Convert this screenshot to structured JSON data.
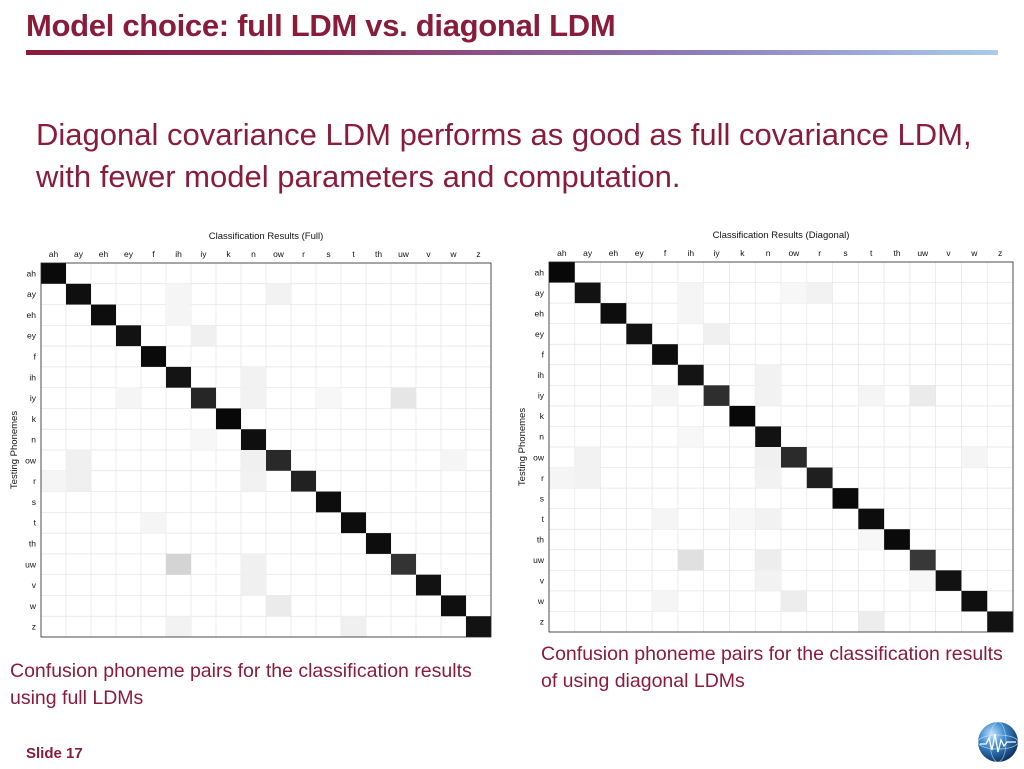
{
  "slide": {
    "title": "Model choice: full LDM vs. diagonal LDM",
    "subtitle": "Diagonal covariance LDM performs as good as full covariance LDM, with fewer model parameters and computation.",
    "slide_number": "Slide 17",
    "logo_icon": "globe-logo-icon",
    "accent_color": "#8a1c3b"
  },
  "captions": {
    "full": "Confusion phoneme pairs for the classification results using full LDMs",
    "diagonal": "Confusion phoneme pairs for the classification results of using diagonal LDMs"
  },
  "chart_data": [
    {
      "type": "heatmap",
      "title": "Classification Results (Full)",
      "xlabel": "",
      "ylabel": "Testing Phonemes",
      "x": [
        "ah",
        "ay",
        "eh",
        "ey",
        "f",
        "ih",
        "iy",
        "k",
        "n",
        "ow",
        "r",
        "s",
        "t",
        "th",
        "uw",
        "v",
        "w",
        "z"
      ],
      "y": [
        "ah",
        "ay",
        "eh",
        "ey",
        "f",
        "ih",
        "iy",
        "k",
        "n",
        "ow",
        "r",
        "s",
        "t",
        "th",
        "uw",
        "v",
        "w",
        "z"
      ],
      "grid": true,
      "diagonal": [
        0.96,
        0.94,
        0.95,
        0.93,
        0.96,
        0.92,
        0.85,
        0.97,
        0.94,
        0.84,
        0.87,
        0.95,
        0.95,
        0.95,
        0.8,
        0.93,
        0.94,
        0.93
      ],
      "off_diagonal": [
        {
          "row": "ay",
          "col": "ih",
          "value": 0.04
        },
        {
          "row": "ay",
          "col": "ow",
          "value": 0.05
        },
        {
          "row": "eh",
          "col": "ih",
          "value": 0.04
        },
        {
          "row": "ey",
          "col": "iy",
          "value": 0.06
        },
        {
          "row": "ih",
          "col": "n",
          "value": 0.05
        },
        {
          "row": "iy",
          "col": "ey",
          "value": 0.04
        },
        {
          "row": "iy",
          "col": "n",
          "value": 0.05
        },
        {
          "row": "iy",
          "col": "s",
          "value": 0.03
        },
        {
          "row": "iy",
          "col": "uw",
          "value": 0.1
        },
        {
          "row": "n",
          "col": "iy",
          "value": 0.03
        },
        {
          "row": "ow",
          "col": "ay",
          "value": 0.06
        },
        {
          "row": "ow",
          "col": "n",
          "value": 0.06
        },
        {
          "row": "ow",
          "col": "w",
          "value": 0.04
        },
        {
          "row": "r",
          "col": "ah",
          "value": 0.04
        },
        {
          "row": "r",
          "col": "ay",
          "value": 0.06
        },
        {
          "row": "r",
          "col": "n",
          "value": 0.05
        },
        {
          "row": "t",
          "col": "f",
          "value": 0.04
        },
        {
          "row": "uw",
          "col": "ih",
          "value": 0.17
        },
        {
          "row": "uw",
          "col": "n",
          "value": 0.06
        },
        {
          "row": "v",
          "col": "n",
          "value": 0.06
        },
        {
          "row": "w",
          "col": "ow",
          "value": 0.08
        },
        {
          "row": "z",
          "col": "ih",
          "value": 0.05
        },
        {
          "row": "z",
          "col": "t",
          "value": 0.06
        }
      ]
    },
    {
      "type": "heatmap",
      "title": "Classification Results (Diagonal)",
      "xlabel": "",
      "ylabel": "Testing Phonemes",
      "x": [
        "ah",
        "ay",
        "eh",
        "ey",
        "f",
        "ih",
        "iy",
        "k",
        "n",
        "ow",
        "r",
        "s",
        "t",
        "th",
        "uw",
        "v",
        "w",
        "z"
      ],
      "y": [
        "ah",
        "ay",
        "eh",
        "ey",
        "f",
        "ih",
        "iy",
        "k",
        "n",
        "ow",
        "r",
        "s",
        "t",
        "th",
        "uw",
        "v",
        "w",
        "z"
      ],
      "grid": true,
      "diagonal": [
        0.97,
        0.93,
        0.95,
        0.93,
        0.95,
        0.92,
        0.82,
        0.97,
        0.93,
        0.83,
        0.88,
        0.96,
        0.95,
        0.96,
        0.78,
        0.93,
        0.94,
        0.93
      ],
      "off_diagonal": [
        {
          "row": "ay",
          "col": "ih",
          "value": 0.04
        },
        {
          "row": "ay",
          "col": "ow",
          "value": 0.03
        },
        {
          "row": "ay",
          "col": "r",
          "value": 0.05
        },
        {
          "row": "eh",
          "col": "ih",
          "value": 0.04
        },
        {
          "row": "ey",
          "col": "iy",
          "value": 0.06
        },
        {
          "row": "ih",
          "col": "n",
          "value": 0.05
        },
        {
          "row": "iy",
          "col": "f",
          "value": 0.04
        },
        {
          "row": "iy",
          "col": "n",
          "value": 0.05
        },
        {
          "row": "iy",
          "col": "t",
          "value": 0.04
        },
        {
          "row": "iy",
          "col": "uw",
          "value": 0.08
        },
        {
          "row": "n",
          "col": "ih",
          "value": 0.03
        },
        {
          "row": "ow",
          "col": "ay",
          "value": 0.05
        },
        {
          "row": "ow",
          "col": "n",
          "value": 0.06
        },
        {
          "row": "ow",
          "col": "w",
          "value": 0.04
        },
        {
          "row": "r",
          "col": "ah",
          "value": 0.04
        },
        {
          "row": "r",
          "col": "ay",
          "value": 0.05
        },
        {
          "row": "r",
          "col": "n",
          "value": 0.05
        },
        {
          "row": "t",
          "col": "f",
          "value": 0.04
        },
        {
          "row": "t",
          "col": "k",
          "value": 0.03
        },
        {
          "row": "t",
          "col": "n",
          "value": 0.05
        },
        {
          "row": "th",
          "col": "t",
          "value": 0.03
        },
        {
          "row": "uw",
          "col": "ih",
          "value": 0.12
        },
        {
          "row": "uw",
          "col": "n",
          "value": 0.07
        },
        {
          "row": "v",
          "col": "n",
          "value": 0.05
        },
        {
          "row": "v",
          "col": "uw",
          "value": 0.03
        },
        {
          "row": "w",
          "col": "f",
          "value": 0.04
        },
        {
          "row": "w",
          "col": "ow",
          "value": 0.07
        },
        {
          "row": "z",
          "col": "t",
          "value": 0.07
        }
      ]
    }
  ]
}
